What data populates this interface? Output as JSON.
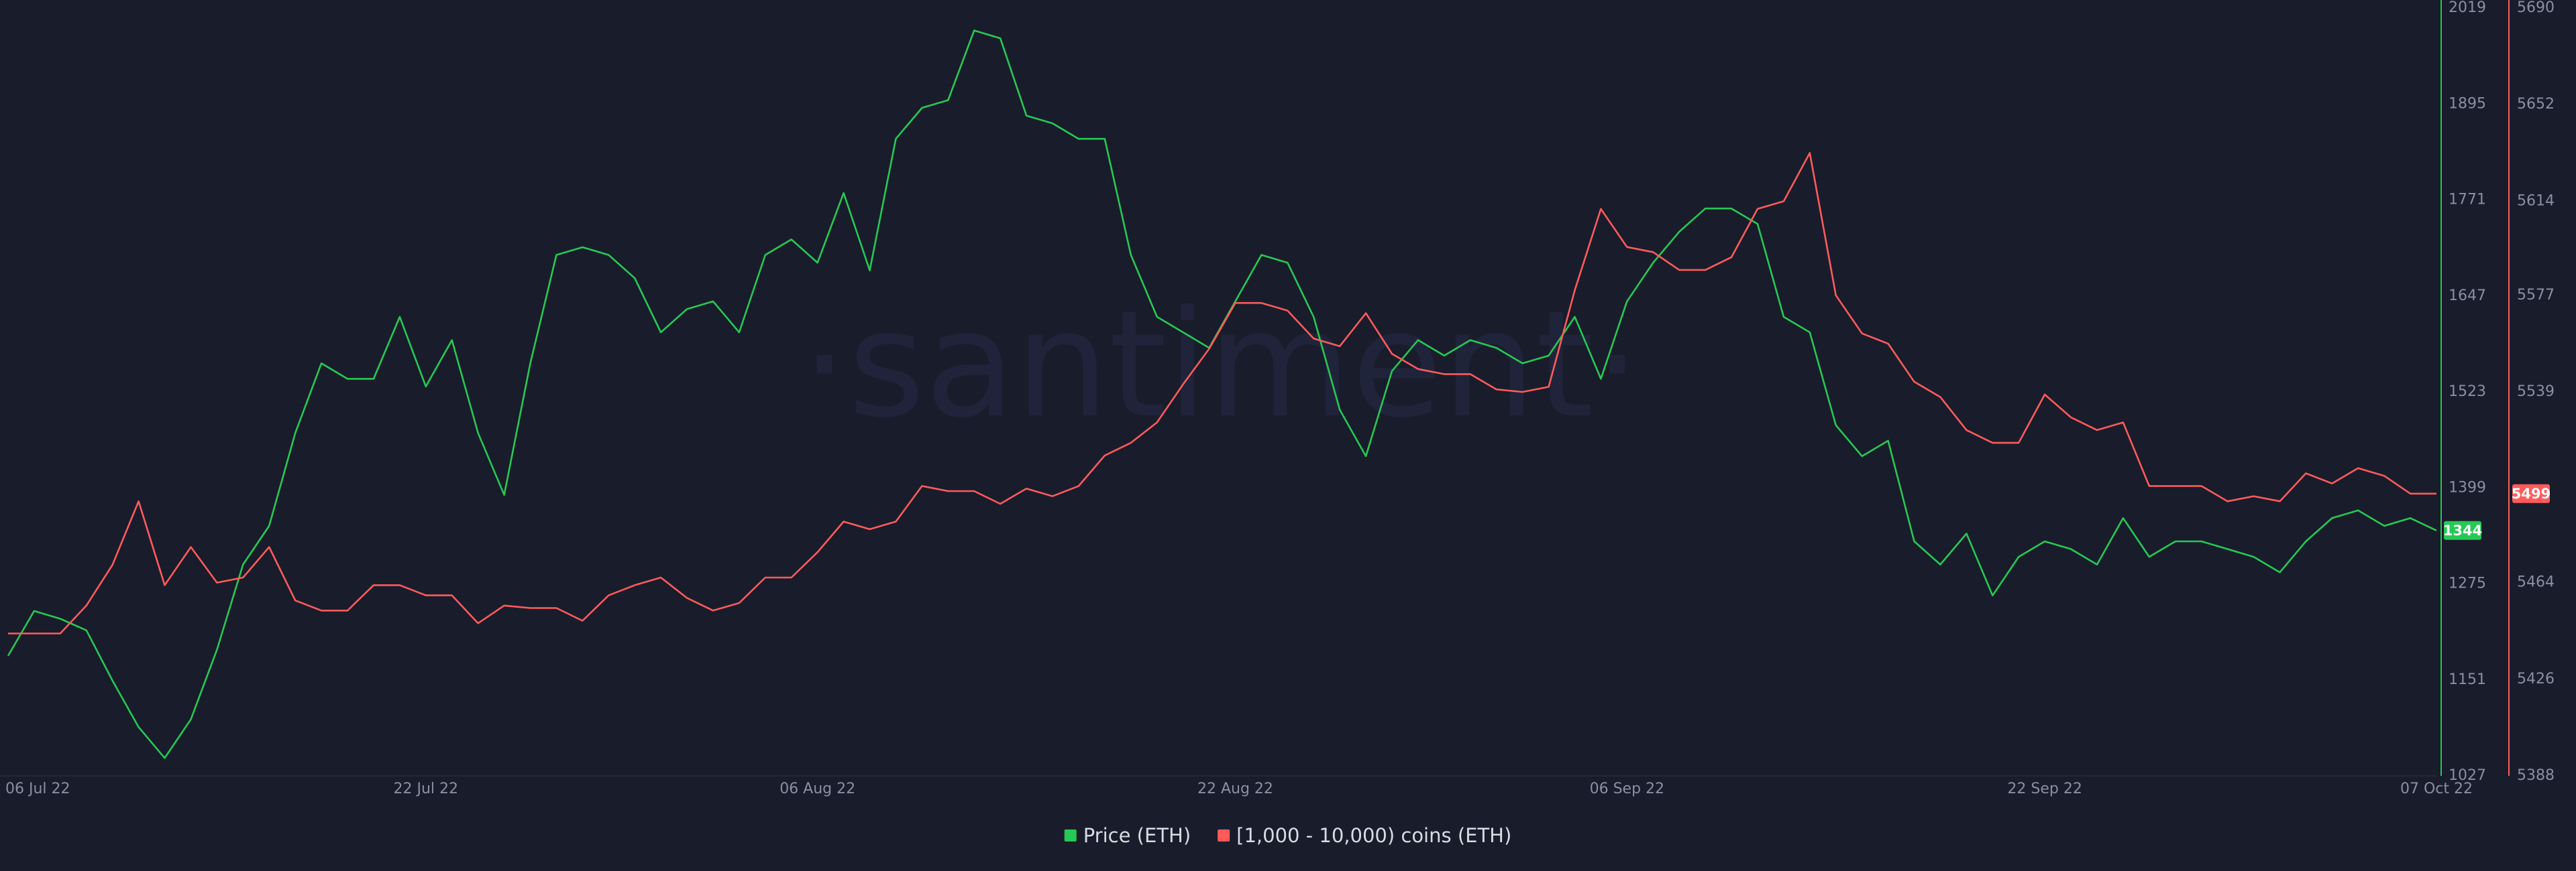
{
  "chart_data": {
    "type": "line",
    "watermark": "·santiment·",
    "x": [
      "2022-07-06",
      "2022-07-07",
      "2022-07-08",
      "2022-07-09",
      "2022-07-10",
      "2022-07-11",
      "2022-07-12",
      "2022-07-13",
      "2022-07-14",
      "2022-07-15",
      "2022-07-16",
      "2022-07-17",
      "2022-07-18",
      "2022-07-19",
      "2022-07-20",
      "2022-07-21",
      "2022-07-22",
      "2022-07-23",
      "2022-07-24",
      "2022-07-25",
      "2022-07-26",
      "2022-07-27",
      "2022-07-28",
      "2022-07-29",
      "2022-07-30",
      "2022-07-31",
      "2022-08-01",
      "2022-08-02",
      "2022-08-03",
      "2022-08-04",
      "2022-08-05",
      "2022-08-06",
      "2022-08-07",
      "2022-08-08",
      "2022-08-09",
      "2022-08-10",
      "2022-08-11",
      "2022-08-12",
      "2022-08-13",
      "2022-08-14",
      "2022-08-15",
      "2022-08-16",
      "2022-08-17",
      "2022-08-18",
      "2022-08-19",
      "2022-08-20",
      "2022-08-21",
      "2022-08-22",
      "2022-08-23",
      "2022-08-24",
      "2022-08-25",
      "2022-08-26",
      "2022-08-27",
      "2022-08-28",
      "2022-08-29",
      "2022-08-30",
      "2022-08-31",
      "2022-09-01",
      "2022-09-02",
      "2022-09-03",
      "2022-09-04",
      "2022-09-05",
      "2022-09-06",
      "2022-09-07",
      "2022-09-08",
      "2022-09-09",
      "2022-09-10",
      "2022-09-11",
      "2022-09-12",
      "2022-09-13",
      "2022-09-14",
      "2022-09-15",
      "2022-09-16",
      "2022-09-17",
      "2022-09-18",
      "2022-09-19",
      "2022-09-20",
      "2022-09-21",
      "2022-09-22",
      "2022-09-23",
      "2022-09-24",
      "2022-09-25",
      "2022-09-26",
      "2022-09-27",
      "2022-09-28",
      "2022-09-29",
      "2022-09-30",
      "2022-10-01",
      "2022-10-02",
      "2022-10-03",
      "2022-10-04",
      "2022-10-05",
      "2022-10-06",
      "2022-10-07"
    ],
    "xlim": [
      "2022-07-06",
      "2022-10-07"
    ],
    "xticks": [
      {
        "value": "2022-07-06",
        "label": "06 Jul 22"
      },
      {
        "value": "2022-07-22",
        "label": "22 Jul 22"
      },
      {
        "value": "2022-08-06",
        "label": "06 Aug 22"
      },
      {
        "value": "2022-08-22",
        "label": "22 Aug 22"
      },
      {
        "value": "2022-09-06",
        "label": "06 Sep 22"
      },
      {
        "value": "2022-09-22",
        "label": "22 Sep 22"
      },
      {
        "value": "2022-10-07",
        "label": "07 Oct 22"
      }
    ],
    "ylim": [
      1027,
      2019
    ],
    "yticks": [
      1027,
      1151,
      1275,
      1399,
      1523,
      1647,
      1771,
      1895,
      2019
    ],
    "y2lim": [
      5388,
      5690
    ],
    "y2ticks": [
      5388,
      5426,
      5464,
      5539,
      5577,
      5614,
      5652,
      5690
    ],
    "grid": false,
    "series": [
      {
        "name": "Price (ETH)",
        "color": "#26c953",
        "values": [
          1182,
          1240,
          1230,
          1215,
          1150,
          1090,
          1050,
          1100,
          1190,
          1300,
          1350,
          1470,
          1560,
          1540,
          1540,
          1620,
          1530,
          1590,
          1470,
          1390,
          1560,
          1700,
          1710,
          1700,
          1670,
          1600,
          1630,
          1640,
          1600,
          1700,
          1720,
          1690,
          1780,
          1680,
          1850,
          1890,
          1900,
          1990,
          1980,
          1880,
          1870,
          1850,
          1850,
          1700,
          1620,
          1600,
          1580,
          1640,
          1700,
          1690,
          1620,
          1500,
          1440,
          1550,
          1590,
          1570,
          1590,
          1580,
          1560,
          1570,
          1620,
          1540,
          1640,
          1690,
          1730,
          1760,
          1760,
          1740,
          1620,
          1600,
          1480,
          1440,
          1460,
          1330,
          1300,
          1340,
          1260,
          1310,
          1330,
          1320,
          1300,
          1360,
          1310,
          1330,
          1330,
          1320,
          1310,
          1290,
          1330,
          1360,
          1370,
          1350,
          1360,
          1344
        ]
      },
      {
        "name": "[1,000 - 10,000) coins (ETH)",
        "color": "#ff5b5b",
        "axis": "y2",
        "values": [
          5444,
          5444,
          5444,
          5455,
          5471,
          5496,
          5463,
          5478,
          5464,
          5466,
          5478,
          5457,
          5453,
          5453,
          5463,
          5463,
          5459,
          5459,
          5448,
          5455,
          5454,
          5454,
          5449,
          5459,
          5463,
          5466,
          5458,
          5453,
          5456,
          5466,
          5466,
          5476,
          5488,
          5485,
          5488,
          5502,
          5500,
          5500,
          5495,
          5501,
          5498,
          5502,
          5514,
          5519,
          5527,
          5542,
          5556,
          5574,
          5574,
          5571,
          5560,
          5557,
          5570,
          5554,
          5548,
          5546,
          5546,
          5540,
          5539,
          5541,
          5579,
          5611,
          5596,
          5594,
          5587,
          5587,
          5592,
          5611,
          5614,
          5633,
          5577,
          5562,
          5558,
          5543,
          5537,
          5524,
          5519,
          5519,
          5538,
          5529,
          5524,
          5527,
          5502,
          5502,
          5502,
          5496,
          5498,
          5496,
          5507,
          5503,
          5509,
          5506,
          5499,
          5499
        ]
      }
    ]
  }
}
